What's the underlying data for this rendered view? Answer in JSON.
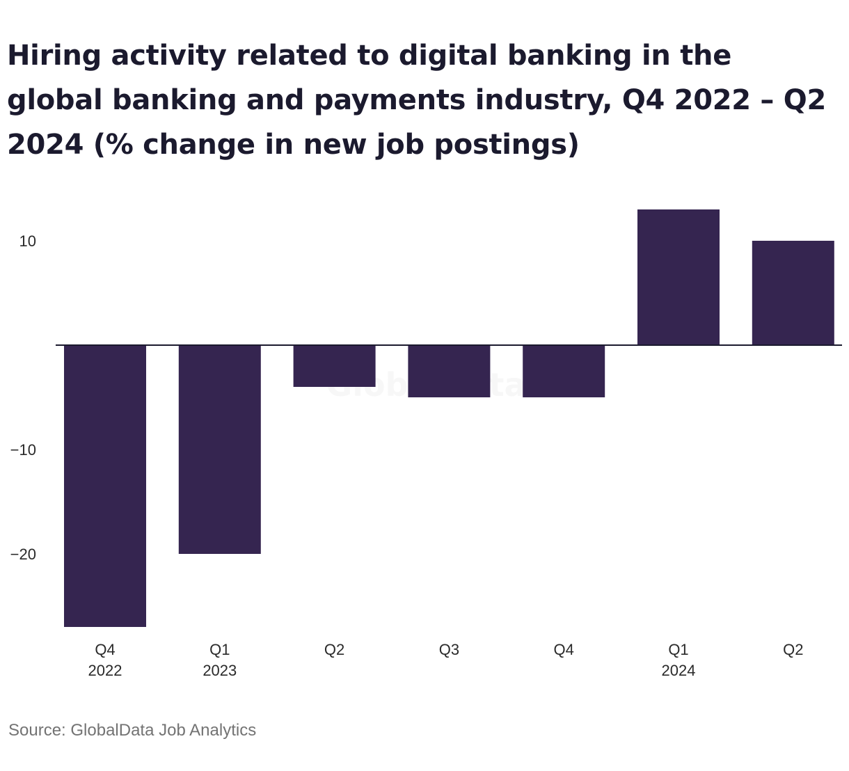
{
  "title": "Hiring activity related to digital banking in the global banking and payments industry, Q4 2022 – Q2 2024 (% change in new job postings)",
  "source": "Source: GlobalData Job Analytics",
  "watermark": "GlobalData",
  "colors": {
    "bar": "#352550",
    "axis": "#1b1a2e",
    "title": "#1b1a2e",
    "source": "#737373"
  },
  "chart_data": {
    "type": "bar",
    "title": "Hiring activity related to digital banking in the global banking and payments industry, Q4 2022 – Q2 2024 (% change in new job postings)",
    "categories": [
      {
        "line1": "Q4",
        "line2": "2022"
      },
      {
        "line1": "Q1",
        "line2": "2023"
      },
      {
        "line1": "Q2",
        "line2": ""
      },
      {
        "line1": "Q3",
        "line2": ""
      },
      {
        "line1": "Q4",
        "line2": ""
      },
      {
        "line1": "Q1",
        "line2": "2024"
      },
      {
        "line1": "Q2",
        "line2": ""
      }
    ],
    "values": [
      -27,
      -20,
      -4,
      -5,
      -5,
      13,
      10
    ],
    "y_ticks": [
      {
        "value": 10,
        "label": "10"
      },
      {
        "value": -10,
        "label": "−10"
      },
      {
        "value": -20,
        "label": "−20"
      }
    ],
    "ylim": [
      -27,
      13
    ],
    "xlabel": "",
    "ylabel": "",
    "grid": false,
    "legend": "none"
  }
}
